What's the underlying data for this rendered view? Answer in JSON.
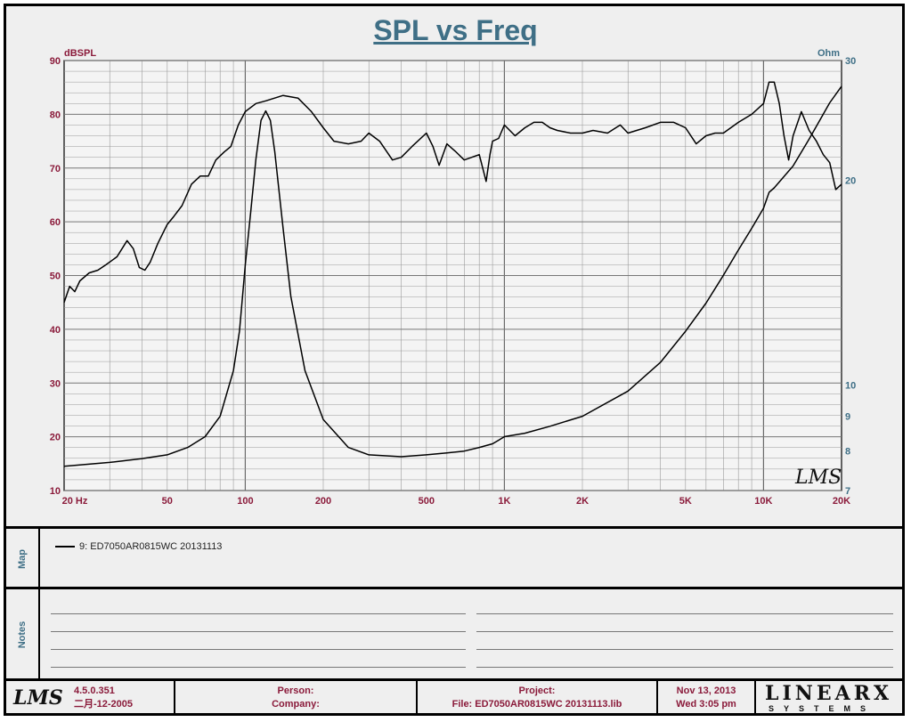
{
  "chart_data": {
    "type": "line",
    "title": "SPL vs Freq",
    "xscale": "log",
    "xlim": [
      20,
      20000
    ],
    "x_ticks": [
      20,
      50,
      100,
      200,
      500,
      1000,
      2000,
      5000,
      10000,
      20000
    ],
    "x_tick_labels": [
      "20  Hz",
      "50",
      "100",
      "200",
      "500",
      "1K",
      "2K",
      "5K",
      "10K",
      "20K"
    ],
    "left_axis": {
      "label": "dBSPL",
      "lim": [
        10,
        90
      ],
      "ticks": [
        10,
        20,
        30,
        40,
        50,
        60,
        70,
        80,
        90
      ]
    },
    "right_axis": {
      "label": "Ohm",
      "scale": "log",
      "lim": [
        7,
        30
      ],
      "ticks": [
        7,
        8,
        9,
        10,
        20,
        30
      ]
    },
    "grid": true,
    "series": [
      {
        "name": "9: ED7050AR0815WC   20131113",
        "axis": "left",
        "x": [
          20,
          21,
          22,
          23,
          25,
          27,
          29,
          32,
          35,
          37,
          39,
          41,
          43,
          46,
          50,
          53,
          57,
          62,
          67,
          72,
          77,
          83,
          88,
          94,
          100,
          110,
          120,
          140,
          160,
          180,
          200,
          220,
          250,
          280,
          300,
          330,
          370,
          400,
          440,
          500,
          530,
          560,
          600,
          650,
          700,
          800,
          850,
          880,
          900,
          950,
          1000,
          1100,
          1200,
          1300,
          1400,
          1500,
          1600,
          1800,
          2000,
          2200,
          2500,
          2800,
          3000,
          3500,
          4000,
          4500,
          5000,
          5500,
          6000,
          6500,
          7000,
          8000,
          9000,
          10000,
          10500,
          11000,
          11500,
          12000,
          12500,
          13000,
          14000,
          15000,
          16000,
          17000,
          18000,
          19000,
          20000
        ],
        "y": [
          45,
          48,
          47,
          49,
          50.5,
          51,
          52,
          53.5,
          56.5,
          55,
          51.5,
          51,
          52.5,
          56,
          59.5,
          61,
          63,
          67,
          68.5,
          68.5,
          71.5,
          73,
          74,
          78,
          80.5,
          82,
          82.5,
          83.5,
          83,
          80.5,
          77.5,
          75,
          74.5,
          75,
          76.5,
          75,
          71.5,
          72,
          74,
          76.5,
          74,
          70.5,
          74.5,
          73,
          71.5,
          72.5,
          67.5,
          72.5,
          75,
          75.5,
          78,
          76,
          77.5,
          78.5,
          78.5,
          77.5,
          77,
          76.5,
          76.5,
          77,
          76.5,
          78,
          76.5,
          77.5,
          78.5,
          78.5,
          77.5,
          74.5,
          76,
          76.5,
          76.5,
          78.5,
          80,
          82,
          86,
          86,
          82,
          76,
          71.5,
          76,
          80.5,
          77,
          75,
          72.5,
          71,
          66,
          67
        ]
      },
      {
        "name": "",
        "axis": "right",
        "x": [
          20,
          30,
          40,
          50,
          60,
          70,
          80,
          90,
          95,
          100,
          105,
          110,
          115,
          120,
          125,
          130,
          140,
          150,
          170,
          200,
          250,
          300,
          400,
          500,
          600,
          700,
          800,
          900,
          950,
          1000,
          1200,
          1500,
          2000,
          3000,
          4000,
          5000,
          6000,
          7000,
          8000,
          9000,
          10000,
          10500,
          11000,
          13000,
          15000,
          18000,
          20000
        ],
        "y": [
          7.6,
          7.7,
          7.8,
          7.9,
          8.1,
          8.4,
          9.0,
          10.5,
          12.0,
          15.0,
          18.0,
          21.5,
          24.5,
          25.3,
          24.5,
          22.0,
          17.0,
          13.5,
          10.5,
          8.9,
          8.1,
          7.9,
          7.85,
          7.9,
          7.95,
          8.0,
          8.1,
          8.2,
          8.3,
          8.4,
          8.5,
          8.7,
          9.0,
          9.8,
          10.8,
          12.0,
          13.2,
          14.5,
          15.8,
          17.0,
          18.2,
          19.2,
          19.5,
          21.0,
          23.0,
          26.0,
          27.5
        ]
      }
    ]
  },
  "map": {
    "label": "Map",
    "entry": "9: ED7050AR0815WC   20131113"
  },
  "notes": {
    "label": "Notes"
  },
  "watermark": "LMS",
  "footer": {
    "logo": "LMS",
    "version": "4.5.0.351",
    "version_date": "二月-12-2005",
    "person_label": "Person:",
    "company_label": "Company:",
    "project_label": "Project:",
    "file_label": "File: ED7050AR0815WC 20131113.lib",
    "date": "Nov 13, 2013",
    "time": "Wed  3:05 pm",
    "brand_big": "LINEARX",
    "brand_small": "SYSTEMS"
  },
  "colors": {
    "title": "#3f6f86",
    "tick_label": "#8a1a3a",
    "axis_label": "#3f6f86",
    "curve": "#000000",
    "grid": "#9a9a9a",
    "background": "#efefef"
  }
}
